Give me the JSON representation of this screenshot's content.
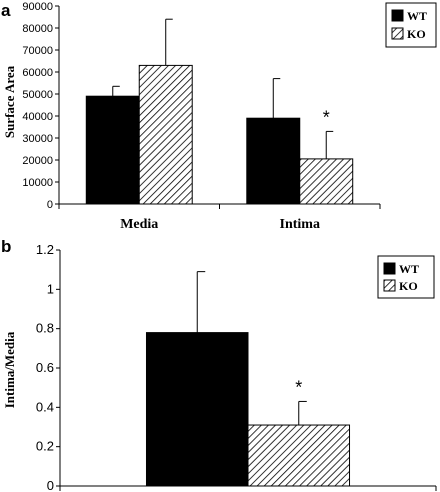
{
  "chart_data": [
    {
      "panel": "a",
      "type": "bar",
      "categories": [
        "Media",
        "Intima"
      ],
      "series": [
        {
          "name": "WT",
          "values": [
            49000,
            39000
          ],
          "errors": [
            4500,
            18000
          ],
          "pattern": "solid"
        },
        {
          "name": "KO",
          "values": [
            63000,
            20500
          ],
          "errors": [
            21000,
            12500
          ],
          "pattern": "hatch"
        }
      ],
      "ylabel": "Surface Area",
      "ylim": [
        0,
        90000
      ],
      "yticks": [
        "0",
        "10000",
        "20000",
        "30000",
        "40000",
        "50000",
        "60000",
        "70000",
        "80000",
        "90000"
      ],
      "yticks_values": [
        0,
        10000,
        20000,
        30000,
        40000,
        50000,
        60000,
        70000,
        80000,
        90000
      ],
      "legend": [
        "WT",
        "KO"
      ],
      "legend_position": "top-right",
      "annotations": [
        {
          "text": "*",
          "category": "Intima",
          "series": "KO"
        }
      ]
    },
    {
      "panel": "b",
      "type": "bar",
      "categories": [
        ""
      ],
      "series": [
        {
          "name": "WT",
          "values": [
            0.78
          ],
          "errors": [
            0.31
          ],
          "pattern": "solid"
        },
        {
          "name": "KO",
          "values": [
            0.31
          ],
          "errors": [
            0.12
          ],
          "pattern": "hatch"
        }
      ],
      "ylabel": "Intima/Media",
      "ylim": [
        0,
        1.2
      ],
      "yticks": [
        "0",
        "0.2",
        "0.4",
        "0.6",
        "0.8",
        "1",
        "1.2"
      ],
      "yticks_values": [
        0,
        0.2,
        0.4,
        0.6,
        0.8,
        1,
        1.2
      ],
      "legend": [
        "WT",
        "KO"
      ],
      "legend_position": "top-right",
      "annotations": [
        {
          "text": "*",
          "category": "",
          "series": "KO"
        }
      ]
    }
  ]
}
